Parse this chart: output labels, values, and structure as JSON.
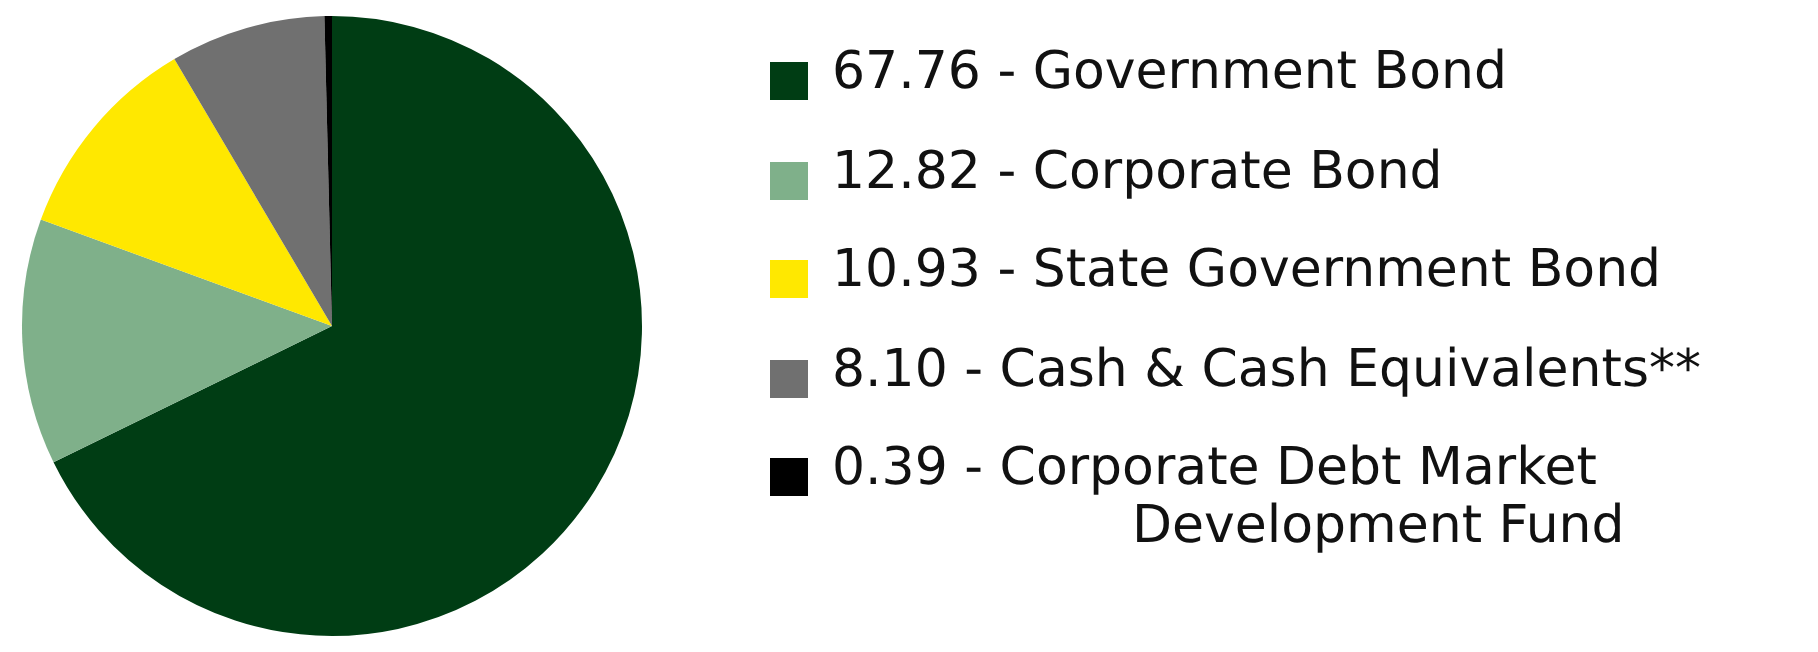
{
  "chart_data": {
    "type": "pie",
    "categories": [
      "67.76 - Government Bond",
      "12.82 - Corporate Bond",
      "10.93 - State Government Bond",
      "8.10 - Cash & Cash Equivalents**",
      "0.39 - Corporate Debt Market Development Fund"
    ],
    "values": [
      67.76,
      12.82,
      10.93,
      8.1,
      0.39
    ],
    "colors": [
      "#003d14",
      "#7fb08a",
      "#ffe800",
      "#707070",
      "#000000"
    ],
    "legend": "right"
  }
}
